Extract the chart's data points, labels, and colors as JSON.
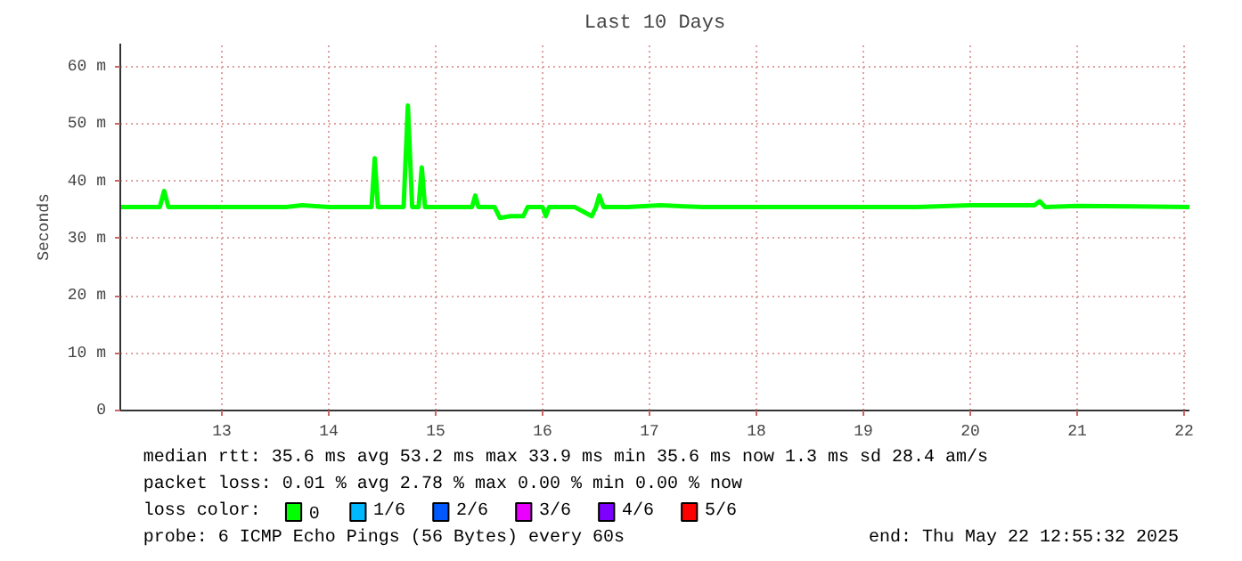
{
  "chart_data": {
    "type": "line",
    "title": "Last 10 Days",
    "ylabel": "Seconds",
    "x": [
      12.05,
      12.3,
      12.42,
      12.46,
      12.5,
      12.8,
      13.2,
      13.6,
      13.75,
      14.0,
      14.4,
      14.43,
      14.46,
      14.7,
      14.74,
      14.78,
      14.84,
      14.87,
      14.9,
      15.2,
      15.34,
      15.37,
      15.4,
      15.55,
      15.6,
      15.7,
      15.82,
      15.86,
      16.0,
      16.03,
      16.06,
      16.3,
      16.46,
      16.5,
      16.53,
      16.57,
      16.8,
      17.1,
      17.5,
      18.0,
      18.5,
      19.0,
      19.5,
      20.0,
      20.3,
      20.6,
      20.65,
      20.7,
      21.0,
      21.5,
      22.05
    ],
    "series": [
      {
        "name": "0",
        "color": "#00ff00",
        "values": [
          35.5,
          35.5,
          35.5,
          38.3,
          35.5,
          35.5,
          35.5,
          35.5,
          35.8,
          35.5,
          35.5,
          44.0,
          35.5,
          35.5,
          53.2,
          35.5,
          35.5,
          42.4,
          35.5,
          35.5,
          35.5,
          37.5,
          35.5,
          35.5,
          33.6,
          33.9,
          33.9,
          35.5,
          35.5,
          33.9,
          35.5,
          35.5,
          33.9,
          35.5,
          37.5,
          35.5,
          35.5,
          35.8,
          35.5,
          35.5,
          35.5,
          35.5,
          35.5,
          35.8,
          35.8,
          35.8,
          36.5,
          35.5,
          35.7,
          35.6,
          35.5
        ]
      },
      {
        "name": "1/6",
        "color": "#00b8ff",
        "values": [
          null,
          null,
          null,
          null,
          null,
          null,
          null,
          null,
          null,
          null,
          null,
          null,
          null,
          null,
          null,
          null,
          null,
          null,
          null,
          null,
          null,
          null,
          null,
          null,
          null,
          null,
          null,
          null,
          null,
          null,
          null,
          null,
          null,
          null,
          null,
          null,
          null,
          null,
          null,
          null,
          null,
          null,
          null,
          null,
          null,
          null,
          null,
          null,
          null,
          null,
          null
        ]
      },
      {
        "name": "2/6",
        "color": "#0059ff",
        "values": [
          null,
          null,
          null,
          null,
          null,
          null,
          null,
          null,
          null,
          null,
          null,
          null,
          null,
          null,
          null,
          null,
          null,
          null,
          null,
          null,
          null,
          null,
          null,
          null,
          null,
          null,
          null,
          null,
          null,
          null,
          null,
          null,
          null,
          null,
          null,
          null,
          null,
          null,
          null,
          null,
          null,
          null,
          null,
          null,
          null,
          null,
          null,
          null,
          null,
          null,
          null
        ]
      },
      {
        "name": "3/6",
        "color": "#ea00ff",
        "values": [
          null,
          null,
          null,
          null,
          null,
          null,
          null,
          null,
          null,
          null,
          null,
          null,
          null,
          null,
          null,
          null,
          null,
          null,
          null,
          null,
          null,
          null,
          null,
          null,
          null,
          null,
          null,
          null,
          null,
          null,
          null,
          null,
          null,
          null,
          null,
          null,
          null,
          null,
          null,
          null,
          null,
          null,
          null,
          null,
          null,
          null,
          null,
          null,
          null,
          null,
          null
        ]
      },
      {
        "name": "4/6",
        "color": "#7e00ff",
        "values": [
          null,
          null,
          null,
          null,
          null,
          null,
          null,
          null,
          null,
          null,
          null,
          null,
          null,
          null,
          null,
          null,
          null,
          null,
          null,
          null,
          null,
          null,
          null,
          null,
          null,
          null,
          null,
          null,
          null,
          null,
          null,
          null,
          null,
          null,
          null,
          null,
          null,
          null,
          null,
          null,
          null,
          null,
          null,
          null,
          null,
          null,
          null,
          null,
          null,
          null,
          null
        ]
      },
      {
        "name": "5/6",
        "color": "#ff0000",
        "values": [
          null,
          null,
          null,
          null,
          null,
          null,
          null,
          null,
          null,
          null,
          null,
          null,
          null,
          null,
          null,
          null,
          null,
          null,
          null,
          null,
          null,
          null,
          null,
          null,
          null,
          null,
          null,
          null,
          null,
          null,
          null,
          null,
          null,
          null,
          null,
          null,
          null,
          null,
          null,
          null,
          null,
          null,
          null,
          null,
          null,
          null,
          null,
          null,
          null,
          null,
          null
        ]
      }
    ],
    "xlim": [
      12.05,
      22.05
    ],
    "xticks": [
      13,
      14,
      15,
      16,
      17,
      18,
      19,
      20,
      21,
      22
    ],
    "ylim": [
      0,
      64
    ],
    "yticks": [
      {
        "value": 0,
        "label": "0"
      },
      {
        "value": 10,
        "label": "10 m"
      },
      {
        "value": 20,
        "label": "20 m"
      },
      {
        "value": 30,
        "label": "30 m"
      },
      {
        "value": 40,
        "label": "40 m"
      },
      {
        "value": 50,
        "label": "50 m"
      },
      {
        "value": 60,
        "label": "60 m"
      }
    ],
    "grid": true,
    "legend": "bottom",
    "legend_title": "loss color:",
    "annotations": [
      "median rtt:  35.6 ms avg  53.2 ms max  33.9 ms min  35.6 ms now  1.3 ms sd  28.4   am/s",
      "packet loss: 0.01 % avg  2.78 % max  0.00 % min  0.00 % now",
      "probe:        6 ICMP Echo Pings (56 Bytes) every 60s",
      "end: Thu May 22 12:55:32 2025"
    ]
  }
}
